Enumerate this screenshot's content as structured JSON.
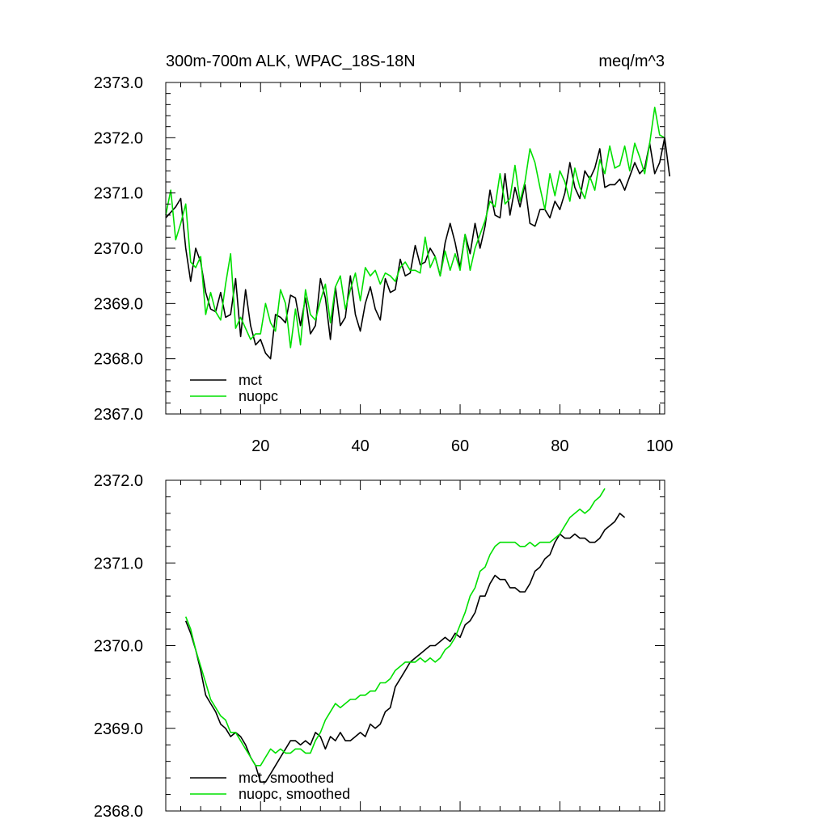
{
  "colors": {
    "mct": "#000000",
    "nuopc": "#00e000",
    "axis": "#000000",
    "background": "#ffffff"
  },
  "chart_data": [
    {
      "type": "line",
      "title": "300m-700m ALK, WPAC_18S-18N",
      "units": "meq/m^3",
      "xlabel": "",
      "ylabel": "",
      "xlim": [
        1,
        101
      ],
      "ylim": [
        2367.0,
        2373.0
      ],
      "yticks": [
        2367.0,
        2368.0,
        2369.0,
        2370.0,
        2371.0,
        2372.0,
        2373.0
      ],
      "ytick_labels": [
        "2367.0",
        "2368.0",
        "2369.0",
        "2370.0",
        "2371.0",
        "2372.0",
        "2373.0"
      ],
      "xticks": [
        20,
        40,
        60,
        80,
        100
      ],
      "xtick_labels": [
        "20",
        "40",
        "60",
        "80",
        "100"
      ],
      "legend_position": "bottom-left",
      "series": [
        {
          "name": "mct",
          "values": [
            2370.55,
            2370.65,
            2370.75,
            2370.9,
            2370.0,
            2369.4,
            2370.0,
            2369.75,
            2369.2,
            2368.9,
            2368.85,
            2369.2,
            2368.75,
            2368.8,
            2369.45,
            2368.4,
            2369.25,
            2368.6,
            2368.25,
            2368.35,
            2368.1,
            2368.0,
            2368.8,
            2368.75,
            2368.65,
            2369.15,
            2369.1,
            2368.6,
            2369.1,
            2368.45,
            2368.6,
            2369.45,
            2369.1,
            2368.35,
            2369.3,
            2368.6,
            2368.75,
            2369.5,
            2368.8,
            2368.5,
            2369.0,
            2369.3,
            2368.9,
            2368.7,
            2369.45,
            2369.2,
            2369.25,
            2369.8,
            2369.5,
            2369.55,
            2370.05,
            2369.7,
            2369.75,
            2370.0,
            2369.85,
            2369.5,
            2370.1,
            2370.45,
            2370.1,
            2369.65,
            2370.25,
            2369.9,
            2370.45,
            2370.0,
            2370.4,
            2371.05,
            2370.6,
            2370.55,
            2371.35,
            2370.6,
            2371.1,
            2370.75,
            2371.15,
            2370.45,
            2370.4,
            2370.7,
            2370.7,
            2370.55,
            2370.85,
            2370.7,
            2371.0,
            2371.55,
            2371.1,
            2370.9,
            2371.4,
            2371.25,
            2371.45,
            2371.8,
            2371.1,
            2371.15,
            2371.15,
            2371.25,
            2371.05,
            2371.3,
            2371.55,
            2371.35,
            2371.45,
            2371.9,
            2371.35,
            2371.55,
            2372.0,
            2371.3
          ]
        },
        {
          "name": "nuopc",
          "values": [
            2370.6,
            2371.05,
            2370.15,
            2370.45,
            2370.8,
            2369.75,
            2369.65,
            2369.85,
            2368.8,
            2369.2,
            2368.85,
            2368.7,
            2369.35,
            2369.9,
            2368.55,
            2368.75,
            2368.55,
            2368.35,
            2368.45,
            2368.45,
            2369.0,
            2368.65,
            2368.5,
            2369.25,
            2369.0,
            2368.2,
            2368.9,
            2368.25,
            2369.25,
            2368.8,
            2368.7,
            2369.05,
            2369.35,
            2368.65,
            2369.3,
            2369.5,
            2368.9,
            2369.25,
            2369.55,
            2369.05,
            2369.65,
            2369.5,
            2369.6,
            2369.35,
            2369.55,
            2369.5,
            2369.4,
            2369.65,
            2369.75,
            2369.6,
            2369.6,
            2369.55,
            2370.2,
            2369.65,
            2369.85,
            2369.5,
            2369.95,
            2369.6,
            2369.9,
            2369.6,
            2370.25,
            2369.6,
            2370.0,
            2370.25,
            2370.5,
            2370.85,
            2370.75,
            2371.35,
            2370.8,
            2370.9,
            2371.5,
            2370.85,
            2371.2,
            2371.8,
            2371.55,
            2371.1,
            2370.7,
            2371.35,
            2370.95,
            2371.4,
            2371.2,
            2370.85,
            2371.45,
            2371.1,
            2370.9,
            2371.3,
            2371.05,
            2371.6,
            2371.35,
            2371.85,
            2371.45,
            2371.5,
            2371.85,
            2371.4,
            2371.9,
            2371.65,
            2371.35,
            2371.9,
            2372.55,
            2372.05,
            2372.0
          ]
        }
      ]
    },
    {
      "type": "line",
      "title": "",
      "xlabel": "",
      "ylabel": "",
      "xlim": [
        1,
        101
      ],
      "ylim": [
        2368.0,
        2372.0
      ],
      "yticks": [
        2368.0,
        2369.0,
        2370.0,
        2371.0,
        2372.0
      ],
      "ytick_labels": [
        "2368.0",
        "2369.0",
        "2370.0",
        "2371.0",
        "2372.0"
      ],
      "xticks": [
        20,
        40,
        60,
        80,
        100
      ],
      "xtick_labels": [],
      "legend_position": "bottom-left",
      "series": [
        {
          "name": "mct, smoothed",
          "x_start": 5,
          "values": [
            2370.3,
            2370.15,
            2369.95,
            2369.7,
            2369.4,
            2369.3,
            2369.2,
            2369.05,
            2369.0,
            2368.9,
            2368.95,
            2368.9,
            2368.8,
            2368.65,
            2368.55,
            2368.35,
            2368.35,
            2368.45,
            2368.55,
            2368.65,
            2368.75,
            2368.85,
            2368.85,
            2368.8,
            2368.85,
            2368.8,
            2368.95,
            2368.9,
            2368.75,
            2368.9,
            2368.85,
            2368.95,
            2368.85,
            2368.85,
            2368.9,
            2368.95,
            2368.9,
            2369.05,
            2369.0,
            2369.05,
            2369.2,
            2369.25,
            2369.5,
            2369.6,
            2369.7,
            2369.8,
            2369.85,
            2369.9,
            2369.95,
            2370.0,
            2370.0,
            2370.05,
            2370.1,
            2370.05,
            2370.15,
            2370.1,
            2370.25,
            2370.3,
            2370.4,
            2370.6,
            2370.6,
            2370.75,
            2370.85,
            2370.8,
            2370.8,
            2370.7,
            2370.7,
            2370.65,
            2370.65,
            2370.75,
            2370.9,
            2370.95,
            2371.05,
            2371.1,
            2371.25,
            2371.35,
            2371.3,
            2371.3,
            2371.35,
            2371.3,
            2371.3,
            2371.25,
            2371.25,
            2371.3,
            2371.4,
            2371.45,
            2371.5,
            2371.6,
            2371.55
          ]
        },
        {
          "name": "nuopc, smoothed",
          "x_start": 5,
          "values": [
            2370.35,
            2370.2,
            2369.95,
            2369.75,
            2369.55,
            2369.35,
            2369.25,
            2369.15,
            2369.1,
            2368.95,
            2368.95,
            2368.85,
            2368.75,
            2368.65,
            2368.55,
            2368.55,
            2368.65,
            2368.75,
            2368.7,
            2368.75,
            2368.7,
            2368.7,
            2368.75,
            2368.75,
            2368.7,
            2368.7,
            2368.85,
            2368.95,
            2369.1,
            2369.2,
            2369.3,
            2369.25,
            2369.3,
            2369.35,
            2369.35,
            2369.4,
            2369.4,
            2369.45,
            2369.45,
            2369.55,
            2369.55,
            2369.6,
            2369.7,
            2369.75,
            2369.8,
            2369.8,
            2369.8,
            2369.85,
            2369.8,
            2369.85,
            2369.8,
            2369.85,
            2369.95,
            2370.0,
            2370.1,
            2370.25,
            2370.4,
            2370.6,
            2370.7,
            2370.9,
            2370.95,
            2371.1,
            2371.2,
            2371.25,
            2371.25,
            2371.25,
            2371.25,
            2371.2,
            2371.2,
            2371.25,
            2371.2,
            2371.25,
            2371.25,
            2371.25,
            2371.3,
            2371.35,
            2371.45,
            2371.55,
            2371.6,
            2371.65,
            2371.6,
            2371.65,
            2371.75,
            2371.8,
            2371.9
          ]
        }
      ]
    }
  ]
}
